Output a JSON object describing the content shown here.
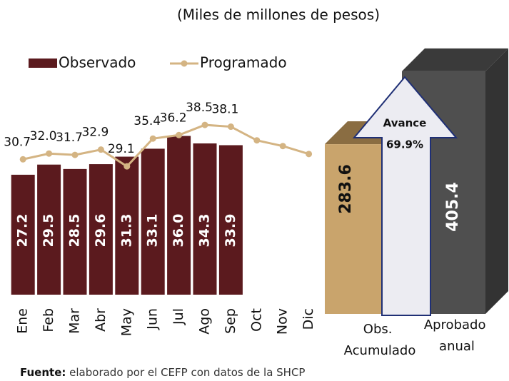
{
  "title": "(Miles de millones de pesos)",
  "chart_data": [
    {
      "type": "bar",
      "categories": [
        "Ene",
        "Feb",
        "Mar",
        "Abr",
        "May",
        "Jun",
        "Jul",
        "Ago",
        "Sep",
        "Oct",
        "Nov",
        "Dic"
      ],
      "series": [
        {
          "name": "Observado",
          "type": "bar",
          "color": "#5b1a1e",
          "values": [
            27.2,
            29.5,
            28.5,
            29.6,
            31.3,
            33.1,
            36.0,
            34.3,
            33.9,
            null,
            null,
            null
          ],
          "value_labels": [
            "27.2",
            "29.5",
            "28.5",
            "29.6",
            "31.3",
            "33.1",
            "36.0",
            "34.3",
            "33.9",
            null,
            null,
            null
          ]
        },
        {
          "name": "Programado",
          "type": "line",
          "color": "#d4b483",
          "values": [
            30.7,
            32.0,
            31.7,
            32.9,
            29.1,
            35.4,
            36.2,
            38.5,
            38.1,
            35.0,
            33.7,
            31.9
          ],
          "value_labels": [
            "30.7",
            "32.0",
            "31.7",
            "32.9",
            "29.1",
            "35.4",
            "36.2",
            "38.5",
            "38.1",
            null,
            null,
            null
          ]
        }
      ]
    },
    {
      "type": "bar3d",
      "categories": [
        "Obs. Acumulado",
        "Aprobado anual"
      ],
      "values": [
        283.6,
        405.4
      ],
      "colors": [
        "#c9a46c",
        "#4f4f4f"
      ],
      "annotation": {
        "text": "Avance",
        "value": 69.9,
        "value_label": "69.9%"
      }
    }
  ],
  "source_label": "Fuente:",
  "source": "elaborado por el CEFP con datos de la SHCP"
}
